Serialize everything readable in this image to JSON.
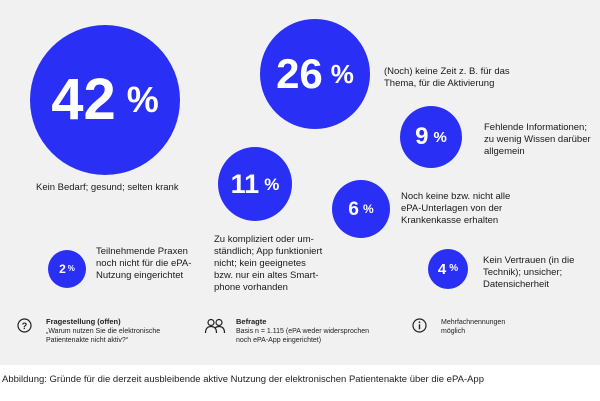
{
  "chart_data": {
    "type": "bubble",
    "unit": "%",
    "items": [
      {
        "value": 42,
        "label_lines": [
          "Kein Bedarf; gesund; selten krank"
        ]
      },
      {
        "value": 26,
        "label_lines": [
          "(Noch) keine Zeit z. B. für das",
          "Thema, für die Aktivierung"
        ]
      },
      {
        "value": 9,
        "label_lines": [
          "Fehlende Informationen;",
          "zu wenig Wissen darüber",
          "allgemein"
        ]
      },
      {
        "value": 11,
        "label_lines": [
          "Zu kompliziert oder um-",
          "ständlich; App funktioniert",
          "nicht; kein geeignetes",
          "bzw. nur ein altes Smart-",
          "phone vorhanden"
        ]
      },
      {
        "value": 6,
        "label_lines": [
          "Noch keine bzw. nicht alle",
          "ePA-Unterlagen von der",
          "Krankenkasse erhalten"
        ]
      },
      {
        "value": 2,
        "label_lines": [
          "Teilnehmende Praxen",
          "noch nicht für die ePA-",
          "Nutzung eingerichtet"
        ]
      },
      {
        "value": 4,
        "label_lines": [
          "Kein Vertrauen (in die",
          "Technik); unsicher;",
          "Datensicherheit"
        ]
      }
    ],
    "color": "#2a2ff5"
  },
  "footer": {
    "question_title": "Fragestellung (offen)",
    "question_text": "„Warum nutzen Sie die elektronische Patientenakte nicht aktiv?“",
    "question_line1": "„Warum nutzen Sie die elektronische",
    "question_line2": "Patientenakte nicht aktiv?“",
    "respondents_title": "Befragte",
    "respondents_line1": "Basis n = 1.115 (ePA weder widersprochen",
    "respondents_line2": "noch ePA-App eingerichtet)",
    "multi_line1": "Mehrfachnennungen",
    "multi_line2": "möglich",
    "icons": [
      "question-circle-icon",
      "people-icon",
      "info-circle-icon"
    ]
  },
  "caption": "Abbildung: Gründe für die derzeit ausbleibende aktive Nutzung der elektronischen Patientenakte über die ePA-App"
}
